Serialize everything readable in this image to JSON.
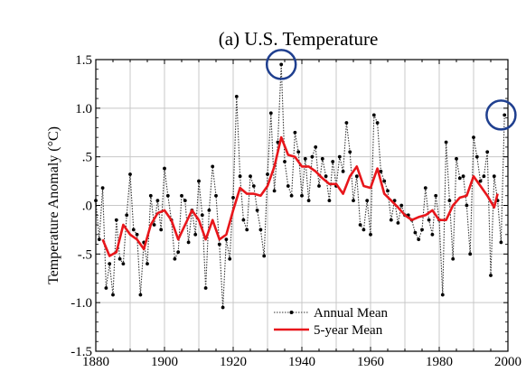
{
  "chart_data": {
    "type": "line",
    "title": "(a)  U.S. Temperature",
    "xlabel": "",
    "ylabel": "Temperature Anomaly (°C)",
    "xlim": [
      1880,
      2000
    ],
    "ylim": [
      -1.5,
      1.5
    ],
    "x_ticks": [
      1880,
      1900,
      1920,
      1940,
      1960,
      1980,
      2000
    ],
    "x_tick_labels": [
      "1880",
      "1900",
      "1920",
      "1940",
      "1960",
      "1980",
      "2000"
    ],
    "y_ticks": [
      1.5,
      1.0,
      0.5,
      0.0,
      -0.5,
      -1.0,
      -1.5
    ],
    "y_tick_labels": [
      "1.5",
      "1.0",
      ".5",
      ".0",
      "-.5",
      "-1.0",
      "-1.5"
    ],
    "grid": true,
    "legend_position": "bottom-center",
    "colors": {
      "annual": "#333333",
      "five_year": "#e8161b",
      "highlight": "#1f3f8f"
    },
    "series": [
      {
        "name": "Annual Mean",
        "style": "dotted-with-markers",
        "x": [
          1880,
          1881,
          1882,
          1883,
          1884,
          1885,
          1886,
          1887,
          1888,
          1889,
          1890,
          1891,
          1892,
          1893,
          1894,
          1895,
          1896,
          1897,
          1898,
          1899,
          1900,
          1901,
          1902,
          1903,
          1904,
          1905,
          1906,
          1907,
          1908,
          1909,
          1910,
          1911,
          1912,
          1913,
          1914,
          1915,
          1916,
          1917,
          1918,
          1919,
          1920,
          1921,
          1922,
          1923,
          1924,
          1925,
          1926,
          1927,
          1928,
          1929,
          1930,
          1931,
          1932,
          1933,
          1934,
          1935,
          1936,
          1937,
          1938,
          1939,
          1940,
          1941,
          1942,
          1943,
          1944,
          1945,
          1946,
          1947,
          1948,
          1949,
          1950,
          1951,
          1952,
          1953,
          1954,
          1955,
          1956,
          1957,
          1958,
          1959,
          1960,
          1961,
          1962,
          1963,
          1964,
          1965,
          1966,
          1967,
          1968,
          1969,
          1970,
          1971,
          1972,
          1973,
          1974,
          1975,
          1976,
          1977,
          1978,
          1979,
          1980,
          1981,
          1982,
          1983,
          1984,
          1985,
          1986,
          1987,
          1988,
          1989,
          1990,
          1991,
          1992,
          1993,
          1994,
          1995,
          1996,
          1997,
          1998,
          1999
        ],
        "values": [
          0.05,
          -0.35,
          0.18,
          -0.85,
          -0.6,
          -0.92,
          -0.15,
          -0.55,
          -0.6,
          -0.1,
          0.32,
          -0.25,
          -0.3,
          -0.92,
          -0.38,
          -0.6,
          0.1,
          -0.2,
          0.05,
          -0.25,
          0.38,
          0.1,
          -0.15,
          -0.55,
          -0.48,
          0.1,
          0.05,
          -0.38,
          -0.05,
          -0.3,
          0.25,
          -0.1,
          -0.85,
          -0.05,
          0.4,
          0.1,
          -0.4,
          -1.05,
          -0.35,
          -0.55,
          0.08,
          1.12,
          0.3,
          -0.15,
          -0.25,
          0.3,
          0.2,
          -0.05,
          -0.25,
          -0.52,
          0.32,
          0.95,
          0.15,
          0.65,
          1.45,
          0.45,
          0.2,
          0.1,
          0.75,
          0.55,
          0.1,
          0.48,
          0.05,
          0.5,
          0.6,
          0.2,
          0.48,
          0.3,
          0.05,
          0.45,
          0.2,
          0.5,
          0.35,
          0.85,
          0.55,
          0.05,
          0.3,
          -0.2,
          -0.25,
          0.05,
          -0.3,
          0.93,
          0.85,
          0.35,
          0.25,
          0.15,
          -0.15,
          0.05,
          -0.18,
          0.0,
          -0.1,
          -0.1,
          -0.15,
          -0.28,
          -0.35,
          -0.25,
          0.18,
          -0.15,
          -0.3,
          0.1,
          -0.15,
          -0.92,
          0.65,
          0.05,
          -0.55,
          0.48,
          0.28,
          0.3,
          0.0,
          -0.5,
          0.7,
          0.5,
          0.25,
          0.3,
          0.55,
          -0.72,
          0.3,
          0.05,
          -0.38,
          0.93
        ],
        "markers": [
          "Annual Mean"
        ]
      },
      {
        "name": "5-year Mean",
        "style": "solid-thick",
        "x": [
          1882,
          1884,
          1886,
          1888,
          1890,
          1892,
          1894,
          1896,
          1898,
          1900,
          1902,
          1904,
          1906,
          1908,
          1910,
          1912,
          1914,
          1916,
          1918,
          1920,
          1922,
          1924,
          1926,
          1928,
          1930,
          1932,
          1934,
          1936,
          1938,
          1940,
          1942,
          1944,
          1946,
          1948,
          1950,
          1952,
          1954,
          1956,
          1958,
          1960,
          1962,
          1964,
          1966,
          1968,
          1970,
          1972,
          1974,
          1976,
          1978,
          1980,
          1982,
          1984,
          1986,
          1988,
          1990,
          1992,
          1994,
          1996,
          1997
        ],
        "values": [
          -0.35,
          -0.52,
          -0.48,
          -0.2,
          -0.3,
          -0.35,
          -0.45,
          -0.2,
          -0.08,
          -0.05,
          -0.15,
          -0.35,
          -0.2,
          -0.05,
          -0.15,
          -0.35,
          -0.15,
          -0.35,
          -0.3,
          -0.05,
          0.18,
          0.12,
          0.12,
          0.1,
          0.2,
          0.4,
          0.7,
          0.52,
          0.5,
          0.4,
          0.4,
          0.35,
          0.28,
          0.22,
          0.22,
          0.12,
          0.3,
          0.4,
          0.2,
          0.18,
          0.38,
          0.12,
          0.05,
          -0.02,
          -0.1,
          -0.15,
          -0.12,
          -0.1,
          -0.05,
          -0.15,
          -0.15,
          0.0,
          0.08,
          0.1,
          0.3,
          0.2,
          0.1,
          -0.02,
          0.12
        ],
        "markers": [
          "5-year Mean"
        ]
      }
    ],
    "annotations": [
      {
        "type": "circle",
        "x": 1934,
        "y": 1.45
      },
      {
        "type": "circle",
        "x": 1998,
        "y": 0.93
      }
    ]
  }
}
